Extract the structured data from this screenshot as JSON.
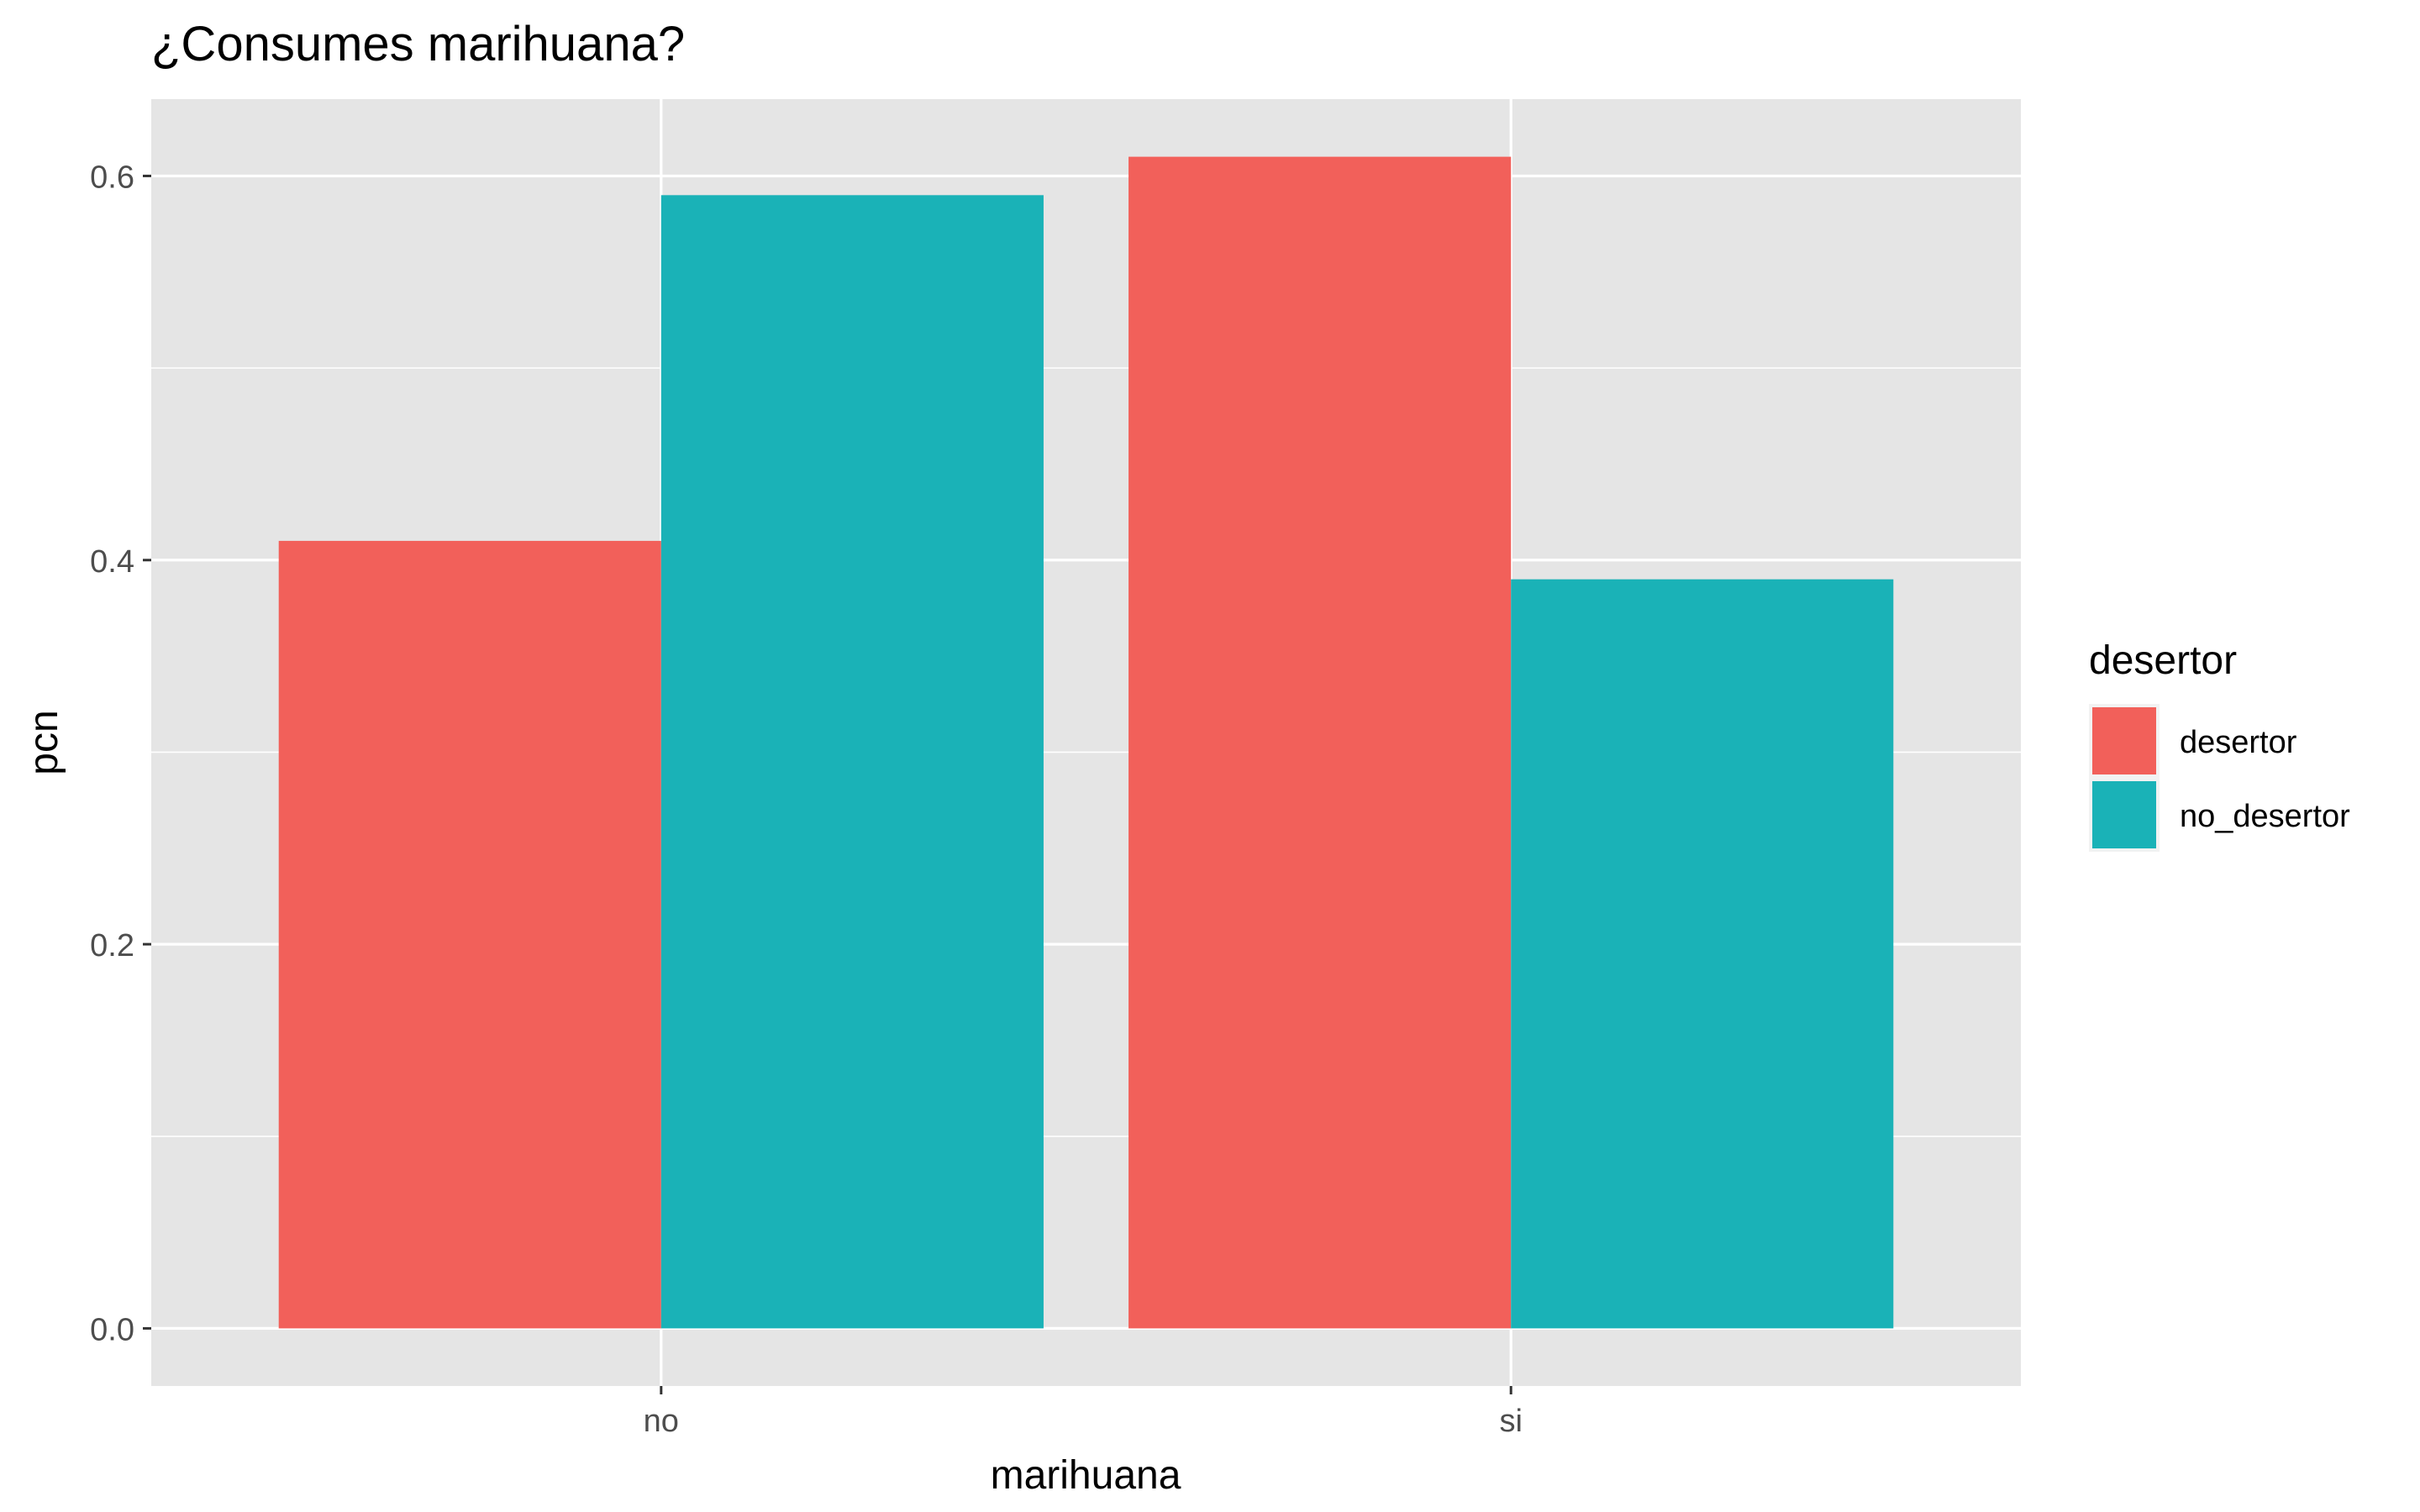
{
  "chart_data": {
    "type": "bar",
    "title": "¿Consumes marihuana?",
    "xlabel": "marihuana",
    "ylabel": "pcn",
    "categories": [
      "no",
      "si"
    ],
    "series": [
      {
        "name": "desertor",
        "color": "#F2605A",
        "values": [
          0.41,
          0.61
        ]
      },
      {
        "name": "no_desertor",
        "color": "#1AB2B7",
        "values": [
          0.59,
          0.39
        ]
      }
    ],
    "ylim": [
      -0.03,
      0.64
    ],
    "yticks": [
      0.0,
      0.2,
      0.4,
      0.6
    ],
    "ytick_labels": [
      "0.0",
      "0.2",
      "0.4",
      "0.6"
    ],
    "grid": true,
    "panel_background": "#E5E5E5",
    "legend": {
      "title": "desertor",
      "position": "right"
    }
  }
}
